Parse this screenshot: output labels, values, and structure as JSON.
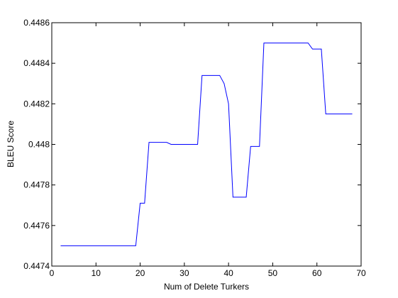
{
  "chart_data": {
    "type": "line",
    "xlabel": "Num of Delete Turkers",
    "ylabel": "BLEU Score",
    "xlim": [
      0,
      70
    ],
    "ylim": [
      0.4474,
      0.4486
    ],
    "xticks": [
      0,
      10,
      20,
      30,
      40,
      50,
      60,
      70
    ],
    "xtick_labels": [
      "0",
      "10",
      "20",
      "30",
      "40",
      "50",
      "60",
      "70"
    ],
    "yticks": [
      0.4474,
      0.4476,
      0.4478,
      0.448,
      0.4482,
      0.4484,
      0.4486
    ],
    "ytick_labels": [
      "0.4474",
      "0.4476",
      "0.4478",
      "0.448",
      "0.4482",
      "0.4484",
      "0.4486"
    ],
    "grid": false,
    "series": [
      {
        "color": "#0000ff",
        "x": [
          2,
          19,
          20,
          21,
          22,
          26,
          27,
          33,
          34,
          38,
          39,
          40,
          41,
          42,
          44,
          45,
          47,
          48,
          58,
          59,
          61,
          62,
          68
        ],
        "y": [
          0.4475,
          0.4475,
          0.44771,
          0.44771,
          0.44801,
          0.44801,
          0.448,
          0.448,
          0.44834,
          0.44834,
          0.4483,
          0.4482,
          0.44774,
          0.44774,
          0.44774,
          0.44799,
          0.44799,
          0.4485,
          0.4485,
          0.44847,
          0.44847,
          0.44815,
          0.44815
        ]
      }
    ]
  }
}
